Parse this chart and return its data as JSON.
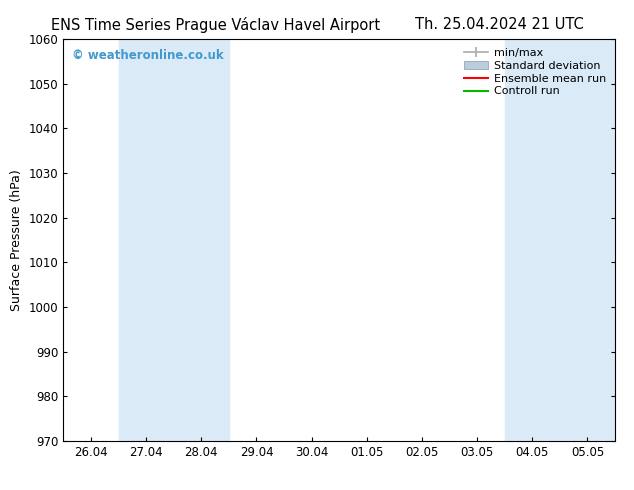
{
  "title_left": "ENS Time Series Prague Václav Havel Airport",
  "title_right": "Th. 25.04.2024 21 UTC",
  "ylabel": "Surface Pressure (hPa)",
  "ylim": [
    970,
    1060
  ],
  "yticks": [
    970,
    980,
    990,
    1000,
    1010,
    1020,
    1030,
    1040,
    1050,
    1060
  ],
  "x_tick_labels": [
    "26.04",
    "27.04",
    "28.04",
    "29.04",
    "30.04",
    "01.05",
    "02.05",
    "03.05",
    "04.05",
    "05.05"
  ],
  "x_tick_positions": [
    0,
    1,
    2,
    3,
    4,
    5,
    6,
    7,
    8,
    9
  ],
  "xlim": [
    -0.5,
    9.5
  ],
  "shaded_bands": [
    {
      "x_start": 0.5,
      "x_end": 2.5,
      "color": "#daeaf7"
    },
    {
      "x_start": 7.5,
      "x_end": 9.5,
      "color": "#daeaf7"
    }
  ],
  "watermark_text": "© weatheronline.co.uk",
  "watermark_color": "#4499cc",
  "legend_labels": [
    "min/max",
    "Standard deviation",
    "Ensemble mean run",
    "Controll run"
  ],
  "legend_colors_line": [
    "#aaaaaa",
    "#bbccdd",
    "#ff0000",
    "#00bb00"
  ],
  "background_color": "#ffffff",
  "plot_bg_color": "#ffffff",
  "title_fontsize": 10.5,
  "axis_label_fontsize": 9,
  "tick_fontsize": 8.5,
  "legend_fontsize": 8
}
